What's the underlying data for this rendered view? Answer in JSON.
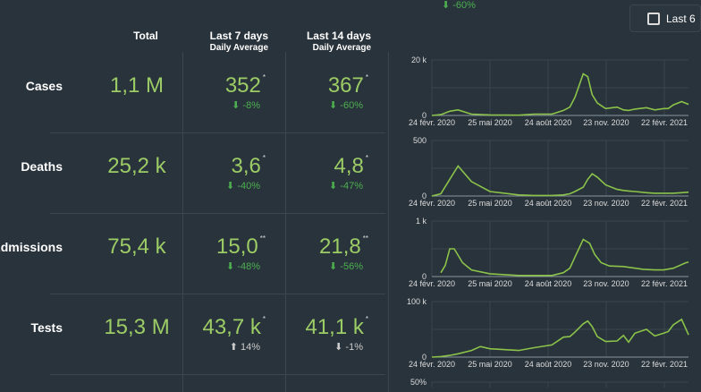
{
  "top_cut_change": "⬇ -60%",
  "filter_button": {
    "label": "Last 6"
  },
  "headers": {
    "total": "Total",
    "last7": "Last 7 days",
    "last14": "Last 14 days",
    "daily_average": "Daily Average"
  },
  "rows": [
    {
      "label": "Cases",
      "total": "1,1 M",
      "last7": "352",
      "last7_mark": "*",
      "last7_change": "⬇ -8%",
      "last14": "367",
      "last14_mark": "*",
      "last14_change": "⬇ -60%"
    },
    {
      "label": "Deaths",
      "total": "25,2 k",
      "last7": "3,6",
      "last7_mark": "*",
      "last7_change": "⬇ -40%",
      "last14": "4,8",
      "last14_mark": "*",
      "last14_change": "⬇ -47%"
    },
    {
      "label": "Admissions",
      "total": "75,4 k",
      "last7": "15,0",
      "last7_mark": "**",
      "last7_change": "⬇ -48%",
      "last14": "21,8",
      "last14_mark": "**",
      "last14_change": "⬇ -56%"
    },
    {
      "label": "Tests",
      "total": "15,3 M",
      "last7": "43,7 k",
      "last7_mark": "*",
      "last7_change": "⬆ 14%",
      "last14": "41,1 k",
      "last14_mark": "*",
      "last14_change": "⬇ -1%"
    }
  ],
  "colors": {
    "background": "#29333b",
    "value": "#9ccc65",
    "down_change": "#4caf50",
    "neutral_change": "#cccccc",
    "line": "#8bc34a"
  },
  "chart_data": [
    {
      "type": "line",
      "ylim": [
        0,
        20000
      ],
      "y_ticks": [
        "0",
        "20 k"
      ],
      "x_ticks": [
        "24 févr. 2020",
        "25 mai 2020",
        "24 août 2020",
        "23 nov. 2020",
        "22 févr. 2021"
      ],
      "x": [
        "2020-02-24",
        "2020-03-09",
        "2020-03-23",
        "2020-04-05",
        "2020-04-26",
        "2020-05-25",
        "2020-07-09",
        "2020-08-02",
        "2020-08-30",
        "2020-09-17",
        "2020-09-27",
        "2020-10-05",
        "2020-10-18",
        "2020-10-25",
        "2020-11-01",
        "2020-11-09",
        "2020-11-22",
        "2020-12-10",
        "2020-12-20",
        "2020-12-28",
        "2021-01-07",
        "2021-01-25",
        "2021-02-07",
        "2021-02-21",
        "2021-02-28",
        "2021-03-08",
        "2021-03-21",
        "2021-04-01"
      ],
      "values": [
        0,
        300,
        1500,
        2000,
        500,
        200,
        100,
        500,
        500,
        1800,
        3000,
        6500,
        15000,
        14000,
        7500,
        4500,
        2500,
        3000,
        2000,
        1800,
        2300,
        2800,
        2000,
        2500,
        2500,
        3800,
        5000,
        4000
      ]
    },
    {
      "type": "line",
      "ylim": [
        0,
        500
      ],
      "y_ticks": [
        "0",
        "500"
      ],
      "x_ticks": [
        "24 févr. 2020",
        "25 mai 2020",
        "24 août 2020",
        "23 nov. 2020",
        "22 févr. 2021"
      ],
      "x": [
        "2020-02-24",
        "2020-03-09",
        "2020-03-23",
        "2020-04-05",
        "2020-04-26",
        "2020-05-25",
        "2020-07-09",
        "2020-08-02",
        "2020-08-30",
        "2020-09-17",
        "2020-09-27",
        "2020-10-05",
        "2020-10-18",
        "2020-10-25",
        "2020-11-01",
        "2020-11-09",
        "2020-11-22",
        "2020-12-10",
        "2020-12-20",
        "2020-12-28",
        "2021-01-07",
        "2021-01-25",
        "2021-02-07",
        "2021-02-21",
        "2021-02-28",
        "2021-03-08",
        "2021-03-21",
        "2021-04-01"
      ],
      "values": [
        0,
        20,
        150,
        270,
        130,
        40,
        10,
        5,
        5,
        10,
        20,
        40,
        80,
        150,
        200,
        170,
        100,
        60,
        50,
        45,
        40,
        30,
        25,
        25,
        25,
        25,
        30,
        35
      ]
    },
    {
      "type": "line",
      "ylim": [
        0,
        1000
      ],
      "y_ticks": [
        "0",
        "1 k"
      ],
      "x_ticks": [
        "24 févr. 2020",
        "25 mai 2020",
        "24 août 2020",
        "23 nov. 2020",
        "22 févr. 2021"
      ],
      "x": [
        "2020-03-09",
        "2020-03-16",
        "2020-03-23",
        "2020-03-30",
        "2020-04-12",
        "2020-04-26",
        "2020-05-25",
        "2020-07-09",
        "2020-08-30",
        "2020-09-17",
        "2020-09-27",
        "2020-10-05",
        "2020-10-18",
        "2020-10-28",
        "2020-11-05",
        "2020-11-15",
        "2020-11-28",
        "2020-12-20",
        "2021-01-20",
        "2021-02-07",
        "2021-02-21",
        "2021-03-08",
        "2021-03-28",
        "2021-04-01"
      ],
      "values": [
        70,
        200,
        500,
        500,
        250,
        120,
        50,
        20,
        20,
        70,
        150,
        350,
        670,
        600,
        400,
        250,
        190,
        180,
        130,
        120,
        120,
        150,
        250,
        260
      ]
    },
    {
      "type": "line",
      "ylim": [
        0,
        100000
      ],
      "y_ticks": [
        "0",
        "100 k"
      ],
      "x_ticks": [
        "24 févr. 2020",
        "25 mai 2020",
        "24 août 2020",
        "23 nov. 2020",
        "22 févr. 2021"
      ],
      "x": [
        "2020-02-24",
        "2020-03-09",
        "2020-03-23",
        "2020-04-05",
        "2020-04-26",
        "2020-05-10",
        "2020-05-25",
        "2020-07-09",
        "2020-08-02",
        "2020-08-30",
        "2020-09-17",
        "2020-09-27",
        "2020-10-05",
        "2020-10-18",
        "2020-10-25",
        "2020-11-01",
        "2020-11-09",
        "2020-11-22",
        "2020-12-10",
        "2020-12-20",
        "2020-12-28",
        "2021-01-07",
        "2021-01-25",
        "2021-02-07",
        "2021-02-21",
        "2021-02-28",
        "2021-03-08",
        "2021-03-21",
        "2021-04-01"
      ],
      "values": [
        0,
        1000,
        3000,
        6000,
        12000,
        19000,
        15000,
        12000,
        17000,
        22000,
        36000,
        37000,
        45000,
        60000,
        65000,
        55000,
        37000,
        28000,
        29000,
        39000,
        27000,
        43000,
        50000,
        38000,
        43000,
        46000,
        58000,
        68000,
        40000
      ]
    },
    {
      "type": "line",
      "y_ticks": [
        "50%"
      ]
    }
  ]
}
